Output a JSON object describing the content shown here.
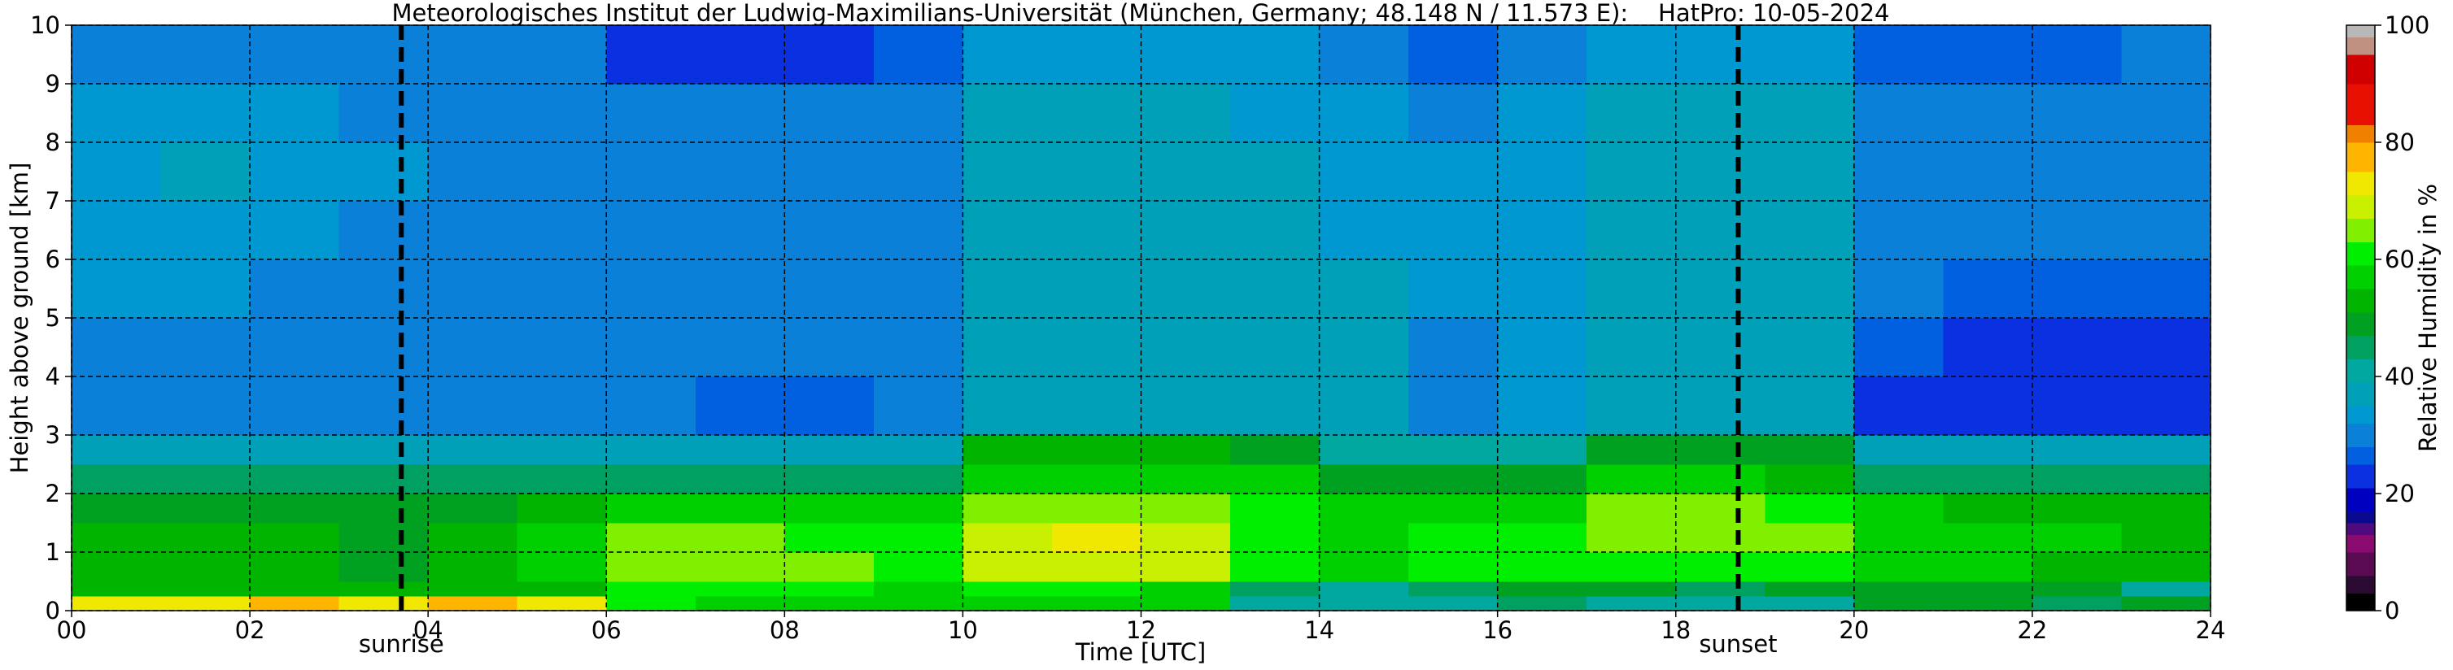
{
  "chart_data": {
    "type": "heatmap",
    "title": "Meteorologisches Institut der Ludwig-Maximilians-Universität (München, Germany; 48.148 N / 11.573 E):    HatPro: 10-05-2024",
    "x_label": "Time [UTC]",
    "y_label": "Height above ground [km]",
    "colorbar_label": "Relative Humidity in %",
    "x": [
      0,
      1,
      2,
      3,
      4,
      5,
      6,
      7,
      8,
      9,
      10,
      11,
      12,
      13,
      14,
      15,
      16,
      17,
      18,
      19,
      20,
      21,
      22,
      23,
      24
    ],
    "y": [
      0,
      0.25,
      0.5,
      1,
      1.5,
      2,
      2.5,
      3,
      4,
      5,
      6,
      7,
      8,
      9,
      10
    ],
    "values": [
      [
        72,
        74,
        76,
        72,
        75,
        72,
        60,
        58,
        56,
        55,
        55,
        55,
        55,
        42,
        40,
        40,
        45,
        42,
        40,
        42,
        50,
        48,
        46,
        48
      ],
      [
        52,
        52,
        52,
        52,
        52,
        52,
        60,
        60,
        60,
        58,
        60,
        60,
        58,
        45,
        42,
        45,
        50,
        48,
        45,
        48,
        50,
        50,
        48,
        42
      ],
      [
        52,
        52,
        52,
        50,
        52,
        55,
        66,
        66,
        65,
        62,
        68,
        70,
        68,
        60,
        56,
        60,
        60,
        62,
        60,
        62,
        56,
        55,
        54,
        52
      ],
      [
        52,
        52,
        52,
        50,
        52,
        55,
        64,
        64,
        62,
        60,
        70,
        72,
        68,
        62,
        56,
        62,
        60,
        66,
        66,
        64,
        58,
        56,
        55,
        54
      ],
      [
        50,
        50,
        50,
        50,
        50,
        52,
        56,
        56,
        56,
        55,
        66,
        66,
        64,
        60,
        55,
        58,
        56,
        64,
        64,
        62,
        55,
        54,
        52,
        52
      ],
      [
        44,
        44,
        44,
        44,
        44,
        46,
        46,
        45,
        44,
        44,
        56,
        56,
        56,
        55,
        50,
        50,
        48,
        55,
        55,
        54,
        45,
        44,
        44,
        44
      ],
      [
        38,
        38,
        38,
        38,
        38,
        38,
        38,
        38,
        38,
        38,
        52,
        52,
        52,
        48,
        42,
        42,
        40,
        50,
        50,
        48,
        38,
        38,
        38,
        38
      ],
      [
        30,
        30,
        30,
        30,
        30,
        30,
        28,
        25,
        26,
        28,
        38,
        38,
        38,
        36,
        35,
        28,
        32,
        38,
        38,
        37,
        24,
        22,
        22,
        23
      ],
      [
        30,
        30,
        30,
        30,
        30,
        30,
        30,
        29,
        29,
        30,
        38,
        38,
        38,
        36,
        35,
        30,
        34,
        38,
        38,
        38,
        25,
        22,
        22,
        23
      ],
      [
        32,
        32,
        30,
        30,
        30,
        30,
        30,
        30,
        30,
        30,
        38,
        38,
        38,
        36,
        35,
        33,
        34,
        38,
        38,
        38,
        28,
        25,
        25,
        26
      ],
      [
        34,
        34,
        33,
        31,
        31,
        31,
        31,
        31,
        31,
        31,
        38,
        38,
        38,
        36,
        34,
        33,
        34,
        37,
        37,
        37,
        30,
        29,
        28,
        29
      ],
      [
        34,
        35,
        34,
        32,
        31,
        31,
        31,
        31,
        31,
        31,
        38,
        38,
        38,
        35,
        33,
        32,
        33,
        36,
        36,
        36,
        30,
        30,
        30,
        30
      ],
      [
        32,
        33,
        32,
        31,
        31,
        31,
        30,
        30,
        30,
        30,
        37,
        37,
        37,
        34,
        32,
        31,
        32,
        35,
        35,
        35,
        30,
        30,
        30,
        30
      ],
      [
        30,
        30,
        30,
        30,
        30,
        28,
        24,
        23,
        24,
        26,
        34,
        34,
        34,
        32,
        30,
        26,
        30,
        33,
        33,
        33,
        25,
        26,
        26,
        29
      ]
    ],
    "xlim": [
      0,
      24
    ],
    "ylim": [
      0,
      10
    ],
    "xticks": [
      {
        "value": 0,
        "label": "00"
      },
      {
        "value": 2,
        "label": "02"
      },
      {
        "value": 4,
        "label": "04"
      },
      {
        "value": 6,
        "label": "06"
      },
      {
        "value": 8,
        "label": "08"
      },
      {
        "value": 10,
        "label": "10"
      },
      {
        "value": 12,
        "label": "12"
      },
      {
        "value": 14,
        "label": "14"
      },
      {
        "value": 16,
        "label": "16"
      },
      {
        "value": 18,
        "label": "18"
      },
      {
        "value": 20,
        "label": "20"
      },
      {
        "value": 22,
        "label": "22"
      },
      {
        "value": 24,
        "label": "24"
      }
    ],
    "yticks": [
      0,
      1,
      2,
      3,
      4,
      5,
      6,
      7,
      8,
      9,
      10
    ],
    "grid": true,
    "clim": [
      0,
      100
    ],
    "cticks": [
      0,
      20,
      40,
      60,
      80,
      100
    ],
    "colormap": [
      {
        "value": 0,
        "color": "#000000"
      },
      {
        "value": 3,
        "color": "#2a0a30"
      },
      {
        "value": 6,
        "color": "#5a0a50"
      },
      {
        "value": 10,
        "color": "#8a0a70"
      },
      {
        "value": 13,
        "color": "#500a80"
      },
      {
        "value": 15,
        "color": "#0a0a90"
      },
      {
        "value": 17,
        "color": "#0000c0"
      },
      {
        "value": 21,
        "color": "#0a30e0"
      },
      {
        "value": 25,
        "color": "#0060e0"
      },
      {
        "value": 28,
        "color": "#0a80d8"
      },
      {
        "value": 32,
        "color": "#0098d0"
      },
      {
        "value": 35,
        "color": "#00a0b8"
      },
      {
        "value": 39,
        "color": "#00a8a0"
      },
      {
        "value": 43,
        "color": "#00a060"
      },
      {
        "value": 47,
        "color": "#00a020"
      },
      {
        "value": 51,
        "color": "#00b400"
      },
      {
        "value": 55,
        "color": "#00d000"
      },
      {
        "value": 59,
        "color": "#00ee00"
      },
      {
        "value": 63,
        "color": "#80f000"
      },
      {
        "value": 67,
        "color": "#c8f000"
      },
      {
        "value": 71,
        "color": "#f0e800"
      },
      {
        "value": 75,
        "color": "#ffb400"
      },
      {
        "value": 80,
        "color": "#f08000"
      },
      {
        "value": 83,
        "color": "#e81000"
      },
      {
        "value": 90,
        "color": "#d00000"
      },
      {
        "value": 95,
        "color": "#c09080"
      },
      {
        "value": 98,
        "color": "#b8b8b8"
      }
    ],
    "annotations": [
      {
        "text": "sunrise",
        "x": 3.7
      },
      {
        "text": "sunset",
        "x": 18.7
      }
    ]
  }
}
